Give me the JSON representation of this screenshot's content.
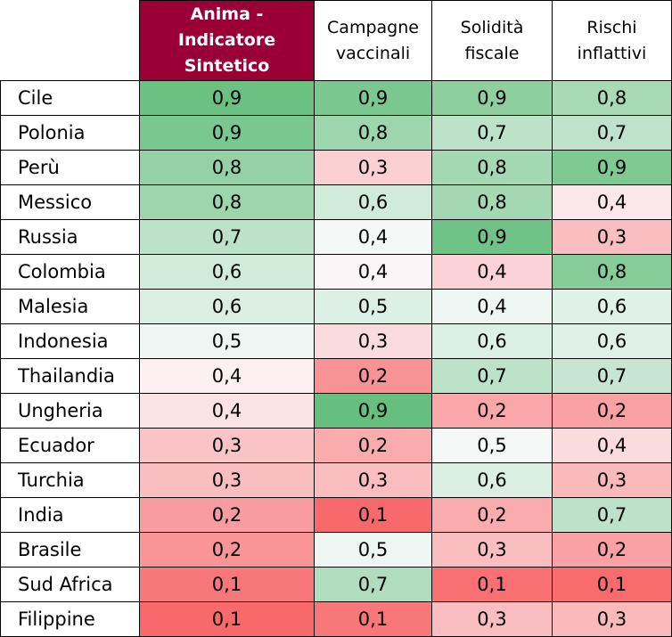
{
  "colors": {
    "header_highlight": "#9a0036",
    "scale_low": "#f8696b",
    "scale_mid": "#fcfcff",
    "scale_high": "#63be7b"
  },
  "chart_data": {
    "type": "heatmap",
    "columns": [
      "Anima - Indicatore Sintetico",
      "Campagne vaccinali",
      "Solidità fiscale",
      "Rischi inflattivi"
    ],
    "rows": [
      {
        "name": "Cile",
        "values": [
          "0,9",
          "0,9",
          "0,9",
          "0,8"
        ]
      },
      {
        "name": "Polonia",
        "values": [
          "0,9",
          "0,8",
          "0,7",
          "0,7"
        ]
      },
      {
        "name": "Perù",
        "values": [
          "0,8",
          "0,3",
          "0,8",
          "0,9"
        ]
      },
      {
        "name": "Messico",
        "values": [
          "0,8",
          "0,6",
          "0,8",
          "0,4"
        ]
      },
      {
        "name": "Russia",
        "values": [
          "0,7",
          "0,4",
          "0,9",
          "0,3"
        ]
      },
      {
        "name": "Colombia",
        "values": [
          "0,6",
          "0,4",
          "0,4",
          "0,8"
        ]
      },
      {
        "name": "Malesia",
        "values": [
          "0,6",
          "0,5",
          "0,4",
          "0,6"
        ]
      },
      {
        "name": "Indonesia",
        "values": [
          "0,5",
          "0,3",
          "0,6",
          "0,6"
        ]
      },
      {
        "name": "Thailandia",
        "values": [
          "0,4",
          "0,2",
          "0,7",
          "0,7"
        ]
      },
      {
        "name": "Ungheria",
        "values": [
          "0,4",
          "0,9",
          "0,2",
          "0,2"
        ]
      },
      {
        "name": "Ecuador",
        "values": [
          "0,3",
          "0,2",
          "0,5",
          "0,4"
        ]
      },
      {
        "name": "Turchia",
        "values": [
          "0,3",
          "0,3",
          "0,6",
          "0,3"
        ]
      },
      {
        "name": "India",
        "values": [
          "0,2",
          "0,1",
          "0,2",
          "0,7"
        ]
      },
      {
        "name": "Brasile",
        "values": [
          "0,2",
          "0,5",
          "0,3",
          "0,2"
        ]
      },
      {
        "name": "Sud Africa",
        "values": [
          "0,1",
          "0,7",
          "0,1",
          "0,1"
        ]
      },
      {
        "name": "Filippine",
        "values": [
          "0,1",
          "0,1",
          "0,3",
          "0,3"
        ]
      }
    ],
    "fill_levels": [
      [
        0.95,
        0.85,
        0.72,
        0.55
      ],
      [
        0.85,
        0.62,
        0.42,
        0.4
      ],
      [
        0.68,
        -0.3,
        0.58,
        0.82
      ],
      [
        0.62,
        0.28,
        0.58,
        -0.15
      ],
      [
        0.42,
        0.05,
        0.92,
        -0.42
      ],
      [
        0.28,
        -0.05,
        -0.28,
        0.78
      ],
      [
        0.22,
        0.2,
        0.1,
        0.18
      ],
      [
        0.1,
        -0.22,
        0.2,
        0.18
      ],
      [
        -0.08,
        -0.72,
        0.42,
        0.35
      ],
      [
        -0.18,
        0.98,
        -0.58,
        -0.62
      ],
      [
        -0.38,
        -0.55,
        0.05,
        -0.22
      ],
      [
        -0.42,
        -0.42,
        0.22,
        -0.45
      ],
      [
        -0.65,
        -1.0,
        -0.55,
        0.42
      ],
      [
        -0.7,
        0.1,
        -0.42,
        -0.62
      ],
      [
        -0.9,
        0.5,
        -0.95,
        -0.98
      ],
      [
        -1.0,
        -0.9,
        -0.42,
        -0.45
      ]
    ]
  }
}
